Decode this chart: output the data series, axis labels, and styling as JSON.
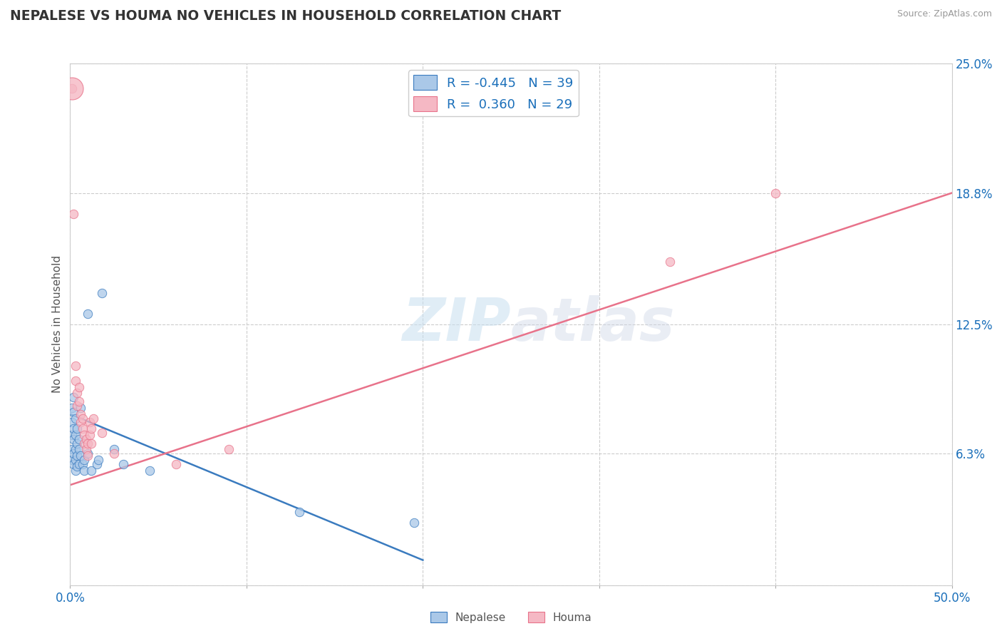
{
  "title": "NEPALESE VS HOUMA NO VEHICLES IN HOUSEHOLD CORRELATION CHART",
  "source_text": "Source: ZipAtlas.com",
  "ylabel": "No Vehicles in Household",
  "xlim": [
    0.0,
    0.5
  ],
  "ylim": [
    0.0,
    0.25
  ],
  "xticks": [
    0.0,
    0.1,
    0.2,
    0.3,
    0.4,
    0.5
  ],
  "xtick_labels": [
    "0.0%",
    "",
    "",
    "",
    "",
    "50.0%"
  ],
  "ytick_labels_right": [
    "25.0%",
    "18.8%",
    "12.5%",
    "6.3%",
    ""
  ],
  "yticks_right": [
    0.25,
    0.188,
    0.125,
    0.063,
    0.0
  ],
  "nepalese_color": "#aac8e8",
  "houma_color": "#f5b8c4",
  "nepalese_line_color": "#3a7bbf",
  "houma_line_color": "#e8728a",
  "nepalese_R": -0.445,
  "nepalese_N": 39,
  "houma_R": 0.36,
  "houma_N": 29,
  "legend_R_color": "#1a6fba",
  "background_color": "#ffffff",
  "watermark_text": "ZIPatlas",
  "nepalese_scatter": [
    [
      0.001,
      0.085
    ],
    [
      0.001,
      0.078
    ],
    [
      0.001,
      0.072
    ],
    [
      0.001,
      0.065
    ],
    [
      0.001,
      0.06
    ],
    [
      0.002,
      0.09
    ],
    [
      0.002,
      0.083
    ],
    [
      0.002,
      0.075
    ],
    [
      0.002,
      0.07
    ],
    [
      0.002,
      0.063
    ],
    [
      0.002,
      0.058
    ],
    [
      0.003,
      0.08
    ],
    [
      0.003,
      0.072
    ],
    [
      0.003,
      0.065
    ],
    [
      0.003,
      0.06
    ],
    [
      0.003,
      0.055
    ],
    [
      0.004,
      0.075
    ],
    [
      0.004,
      0.068
    ],
    [
      0.004,
      0.062
    ],
    [
      0.004,
      0.057
    ],
    [
      0.005,
      0.07
    ],
    [
      0.005,
      0.065
    ],
    [
      0.005,
      0.058
    ],
    [
      0.006,
      0.085
    ],
    [
      0.006,
      0.062
    ],
    [
      0.007,
      0.058
    ],
    [
      0.008,
      0.06
    ],
    [
      0.008,
      0.055
    ],
    [
      0.01,
      0.13
    ],
    [
      0.01,
      0.063
    ],
    [
      0.012,
      0.055
    ],
    [
      0.015,
      0.058
    ],
    [
      0.016,
      0.06
    ],
    [
      0.018,
      0.14
    ],
    [
      0.025,
      0.065
    ],
    [
      0.03,
      0.058
    ],
    [
      0.045,
      0.055
    ],
    [
      0.13,
      0.035
    ],
    [
      0.195,
      0.03
    ]
  ],
  "houma_scatter": [
    [
      0.001,
      0.238
    ],
    [
      0.002,
      0.178
    ],
    [
      0.003,
      0.105
    ],
    [
      0.003,
      0.098
    ],
    [
      0.004,
      0.092
    ],
    [
      0.004,
      0.086
    ],
    [
      0.005,
      0.095
    ],
    [
      0.005,
      0.088
    ],
    [
      0.006,
      0.082
    ],
    [
      0.006,
      0.078
    ],
    [
      0.007,
      0.08
    ],
    [
      0.007,
      0.075
    ],
    [
      0.008,
      0.072
    ],
    [
      0.008,
      0.068
    ],
    [
      0.009,
      0.07
    ],
    [
      0.009,
      0.065
    ],
    [
      0.01,
      0.068
    ],
    [
      0.01,
      0.062
    ],
    [
      0.011,
      0.078
    ],
    [
      0.011,
      0.072
    ],
    [
      0.012,
      0.075
    ],
    [
      0.012,
      0.068
    ],
    [
      0.013,
      0.08
    ],
    [
      0.018,
      0.073
    ],
    [
      0.025,
      0.063
    ],
    [
      0.06,
      0.058
    ],
    [
      0.09,
      0.065
    ],
    [
      0.34,
      0.155
    ],
    [
      0.4,
      0.188
    ]
  ],
  "nepalese_trendline_x": [
    0.0,
    0.2
  ],
  "nepalese_trendline_y": [
    0.082,
    0.012
  ],
  "houma_trendline_x": [
    0.0,
    0.5
  ],
  "houma_trendline_y": [
    0.048,
    0.188
  ]
}
